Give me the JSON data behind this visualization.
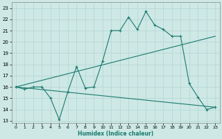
{
  "title": "",
  "xlabel": "Humidex (Indice chaleur)",
  "xlim": [
    -0.5,
    23.5
  ],
  "ylim": [
    12.8,
    23.5
  ],
  "yticks": [
    13,
    14,
    15,
    16,
    17,
    18,
    19,
    20,
    21,
    22,
    23
  ],
  "xticks": [
    0,
    1,
    2,
    3,
    4,
    5,
    6,
    7,
    8,
    9,
    10,
    11,
    12,
    13,
    14,
    15,
    16,
    17,
    18,
    19,
    20,
    21,
    22,
    23
  ],
  "bg_color": "#cde8e5",
  "line_color": "#1a7a6e",
  "grid_color": "#b8d8d5",
  "line1_x": [
    0,
    1,
    2,
    3,
    4,
    5,
    6,
    7,
    8,
    9,
    10,
    11,
    12,
    13,
    14,
    15,
    16,
    17,
    18,
    19,
    20,
    21,
    22,
    23
  ],
  "line1_y": [
    16.0,
    15.8,
    16.0,
    16.0,
    15.0,
    13.1,
    15.6,
    17.8,
    15.9,
    16.0,
    18.3,
    21.0,
    21.0,
    22.2,
    21.1,
    22.7,
    21.5,
    21.1,
    20.5,
    20.5,
    16.3,
    15.1,
    14.0,
    14.2
  ],
  "line2_x": [
    0,
    23
  ],
  "line2_y": [
    16.0,
    20.5
  ],
  "line3_x": [
    0,
    23
  ],
  "line3_y": [
    16.0,
    14.2
  ]
}
